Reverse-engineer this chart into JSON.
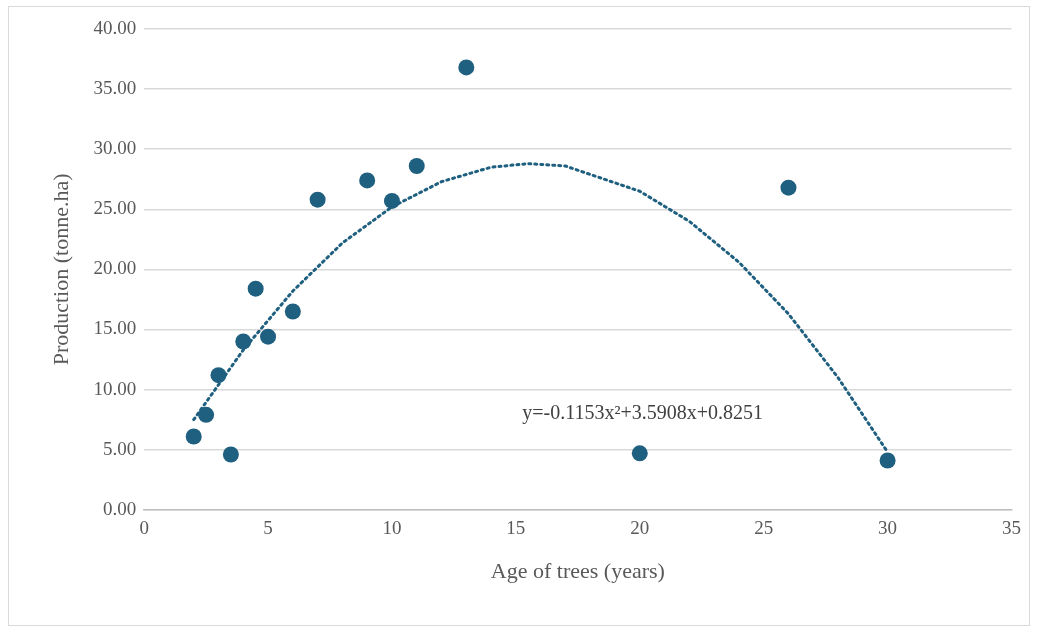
{
  "chart_data": {
    "type": "scatter",
    "xlabel": "Age of trees (years)",
    "ylabel": "Production (tonne.ha)",
    "xlim": [
      0,
      35
    ],
    "xticks": [
      0,
      5,
      10,
      15,
      20,
      25,
      30,
      35
    ],
    "ylim": [
      0,
      40
    ],
    "yticks": [
      {
        "value": 0,
        "label": "0.00"
      },
      {
        "value": 5,
        "label": "5.00"
      },
      {
        "value": 10,
        "label": "10.00"
      },
      {
        "value": 15,
        "label": "15.00"
      },
      {
        "value": 20,
        "label": "20.00"
      },
      {
        "value": 25,
        "label": "25.00"
      },
      {
        "value": 30,
        "label": "30.00"
      },
      {
        "value": 35,
        "label": "35.00"
      },
      {
        "value": 40,
        "label": "40.00"
      }
    ],
    "grid": "y",
    "legend": false,
    "marker": "circle",
    "series": [
      {
        "type": "scatter",
        "color": "#1f5f7f",
        "x": [
          2,
          2.5,
          3,
          3.5,
          4,
          4.5,
          5,
          6,
          7,
          9,
          10,
          11,
          13,
          20,
          26,
          30
        ],
        "values": [
          6.1,
          7.9,
          11.2,
          4.6,
          14.0,
          18.4,
          14.4,
          16.5,
          25.8,
          27.4,
          25.7,
          28.6,
          36.8,
          4.7,
          26.8,
          4.1
        ]
      },
      {
        "type": "line",
        "color": "#1f5f7f",
        "line_style": "dotted",
        "marker": "none",
        "x": [
          2,
          4,
          6,
          8,
          10,
          12,
          14,
          15.5,
          17,
          20,
          22,
          24,
          26,
          28,
          30
        ],
        "values": [
          7.5,
          13.3,
          18.2,
          22.2,
          25.2,
          27.3,
          28.5,
          28.8,
          28.6,
          26.5,
          24.0,
          20.6,
          16.3,
          11.0,
          4.8
        ]
      }
    ],
    "annotations": [
      "y=-0.1153x²+3.5908x+0.8251"
    ]
  }
}
